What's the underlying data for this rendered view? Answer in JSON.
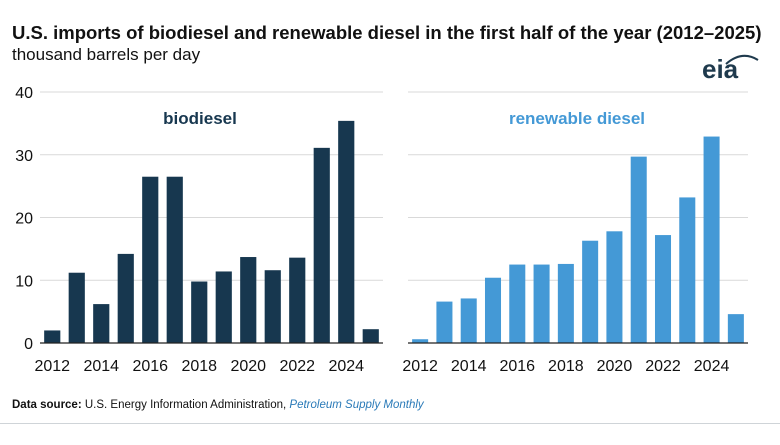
{
  "header": {
    "title": "U.S. imports of biodiesel and renewable diesel in the first half of the year (2012–2025)",
    "subtitle": "thousand barrels per day",
    "logo": "eia"
  },
  "colors": {
    "biodiesel": "#17374f",
    "renewable_diesel": "#4499d6",
    "grid": "#d9d9d9",
    "axis": "#222222"
  },
  "chart_data": [
    {
      "type": "bar",
      "title": "biodiesel",
      "categories": [
        "2012",
        "2013",
        "2014",
        "2015",
        "2016",
        "2017",
        "2018",
        "2019",
        "2020",
        "2021",
        "2022",
        "2023",
        "2024",
        "2025"
      ],
      "tick_labels": [
        "2012",
        "2014",
        "2016",
        "2018",
        "2020",
        "2022",
        "2024"
      ],
      "values": [
        2.0,
        11.2,
        6.2,
        14.2,
        26.5,
        26.5,
        9.8,
        11.4,
        13.7,
        11.6,
        13.6,
        31.1,
        35.4,
        2.2
      ],
      "ylim": [
        0,
        40
      ],
      "yticks": [
        "0",
        "10",
        "20",
        "30",
        "40"
      ],
      "grid": true
    },
    {
      "type": "bar",
      "title": "renewable diesel",
      "categories": [
        "2012",
        "2013",
        "2014",
        "2015",
        "2016",
        "2017",
        "2018",
        "2019",
        "2020",
        "2021",
        "2022",
        "2023",
        "2024",
        "2025"
      ],
      "tick_labels": [
        "2012",
        "2014",
        "2016",
        "2018",
        "2020",
        "2022",
        "2024"
      ],
      "values": [
        0.6,
        6.6,
        7.1,
        10.4,
        12.5,
        12.5,
        12.6,
        16.3,
        17.8,
        29.7,
        17.2,
        23.2,
        32.9,
        4.6
      ],
      "ylim": [
        0,
        40
      ],
      "grid": true
    }
  ],
  "footer": {
    "source_label": "Data source:",
    "source_text": "U.S. Energy Information Administration,",
    "source_pub": "Petroleum Supply Monthly"
  }
}
